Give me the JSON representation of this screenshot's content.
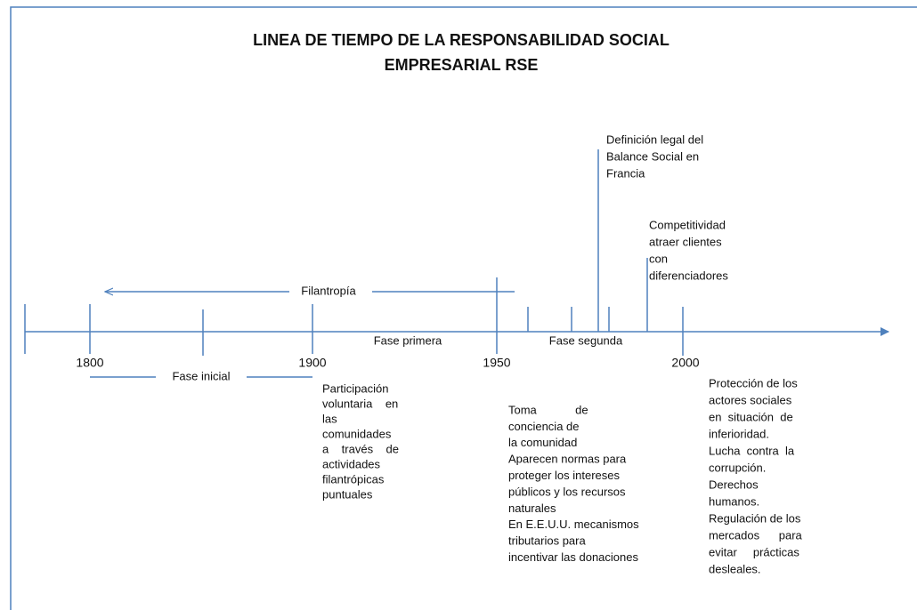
{
  "title": [
    "LINEA  DE TIEMPO DE LA RESPONSABILIDAD SOCIAL",
    "EMPRESARIAL RSE"
  ],
  "years": [
    "1800",
    "1900",
    "1950",
    "2000"
  ],
  "phases": {
    "initial": "Fase inicial",
    "first": "Fase primera",
    "second": "Fase segunda",
    "philanthropy": "Filantropía"
  },
  "notes": {
    "legal": [
      "Definición legal del",
      "Balance Social en",
      "Francia"
    ],
    "competitiveness": [
      "Competitividad",
      "atraer clientes",
      "con",
      "diferenciadores"
    ],
    "participation": [
      "Participación",
      "voluntaria    en",
      "las",
      "comunidades",
      "a    través    de",
      "actividades",
      "filantrópicas",
      "puntuales"
    ],
    "awareness": [
      "Toma            de",
      "conciencia de",
      "la comunidad",
      "Aparecen normas para",
      "proteger los intereses",
      "públicos y los recursos",
      "naturales",
      "En E.E.U.U. mecanismos",
      "tributarios para",
      "incentivar las donaciones"
    ],
    "protection": [
      "Protección de los",
      "actores sociales",
      "en  situación  de",
      "inferioridad.",
      "Lucha  contra  la",
      "corrupción.",
      "Derechos",
      "humanos.",
      "Regulación de los",
      "mercados      para",
      "evitar     prácticas",
      "desleales."
    ]
  }
}
